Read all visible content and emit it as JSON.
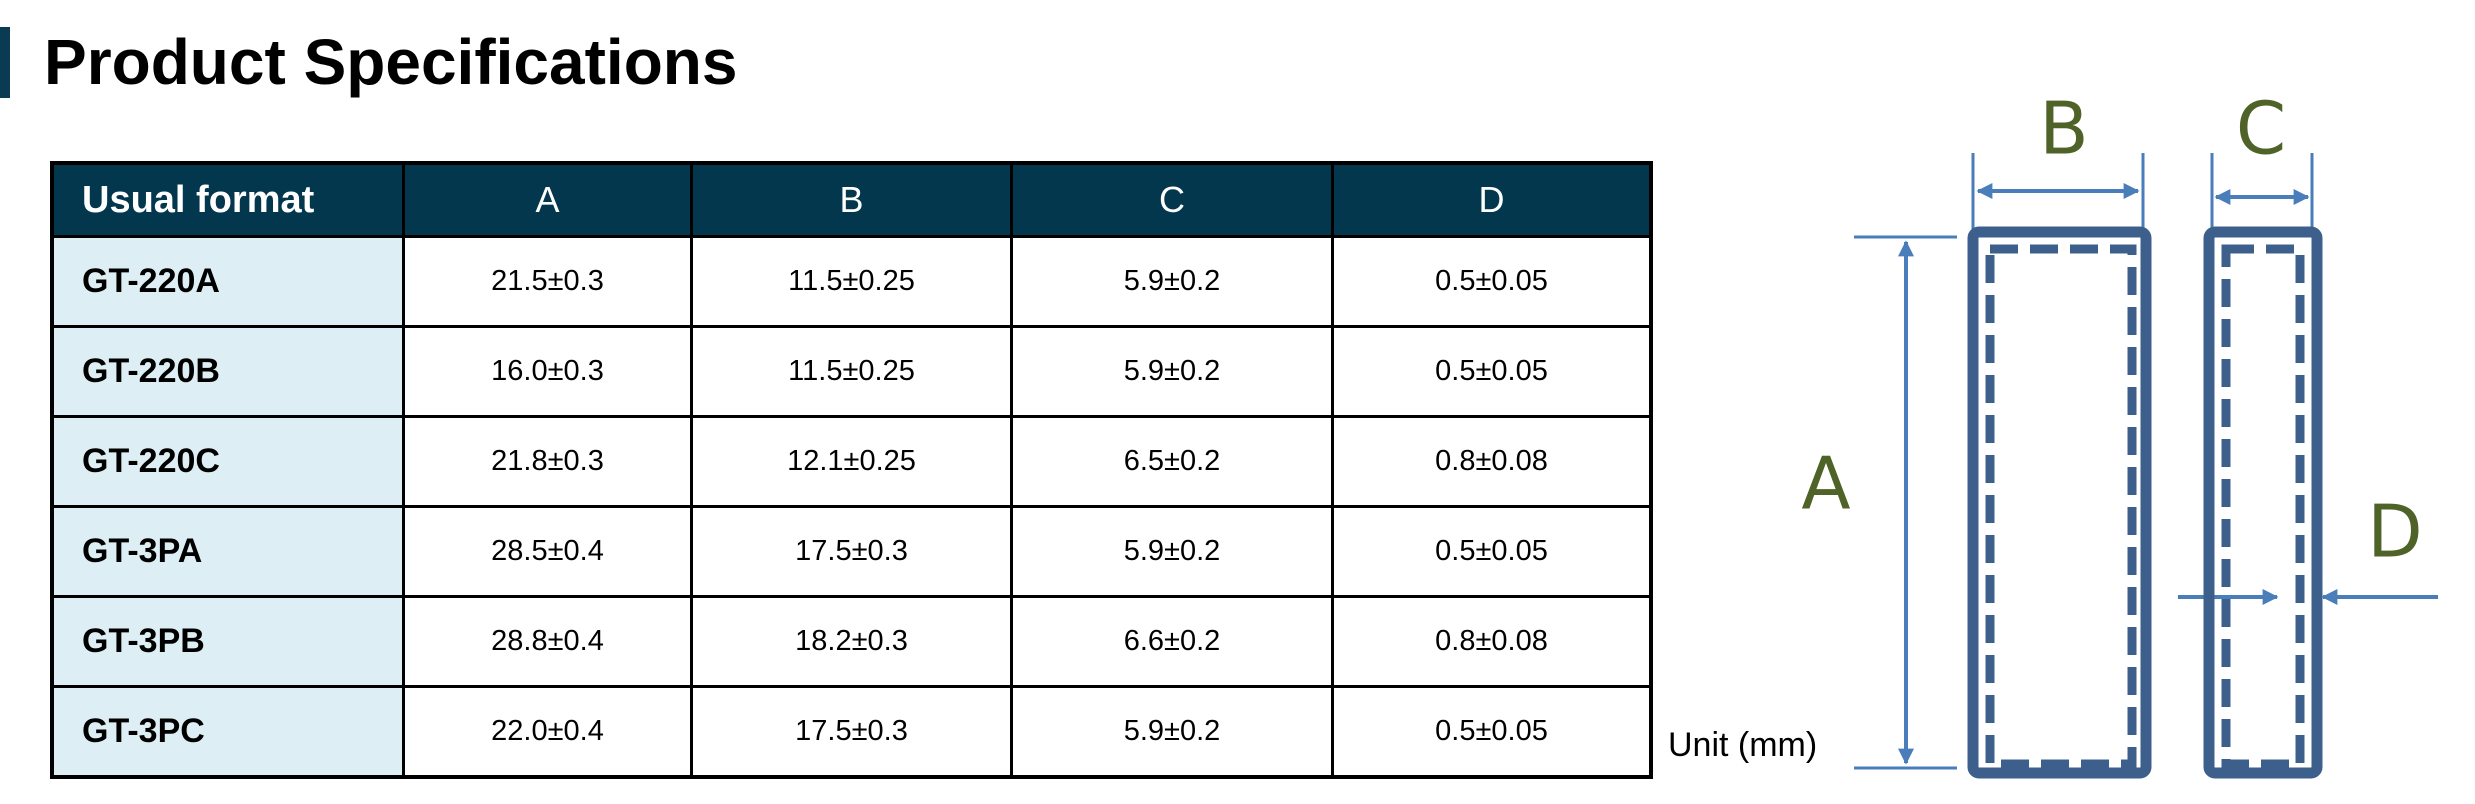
{
  "header": {
    "title": "Product Specifications"
  },
  "table": {
    "columns": [
      "Usual format",
      "A",
      "B",
      "C",
      "D"
    ],
    "rows": [
      [
        "GT-220A",
        "21.5±0.3",
        "11.5±0.25",
        "5.9±0.2",
        "0.5±0.05"
      ],
      [
        "GT-220B",
        "16.0±0.3",
        "11.5±0.25",
        "5.9±0.2",
        "0.5±0.05"
      ],
      [
        "GT-220C",
        "21.8±0.3",
        "12.1±0.25",
        "6.5±0.2",
        "0.8±0.08"
      ],
      [
        "GT-3PA",
        "28.5±0.4",
        "17.5±0.3",
        "5.9±0.2",
        "0.5±0.05"
      ],
      [
        "GT-3PB",
        "28.8±0.4",
        "18.2±0.3",
        "6.6±0.2",
        "0.8±0.08"
      ],
      [
        "GT-3PC",
        "22.0±0.4",
        "17.5±0.3",
        "5.9±0.2",
        "0.5±0.05"
      ]
    ]
  },
  "diagram": {
    "labels": [
      "A",
      "B",
      "C",
      "D"
    ],
    "unit": "Unit (mm)"
  }
}
